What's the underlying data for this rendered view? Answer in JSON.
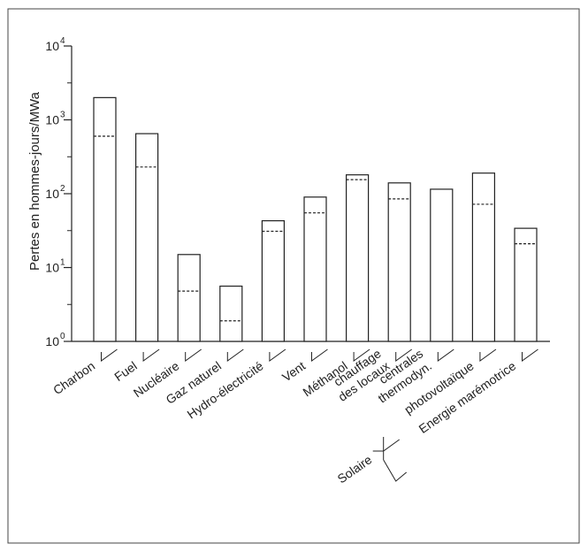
{
  "chart_data": {
    "type": "bar",
    "ylabel": "Pertes en hommes-jours/MWa",
    "yscale": "log",
    "ylim": [
      1,
      10000
    ],
    "ytick_labels": [
      {
        "value": 1,
        "base": "10",
        "exp": "0"
      },
      {
        "value": 10,
        "base": "10",
        "exp": "1"
      },
      {
        "value": 100,
        "base": "10",
        "exp": "2"
      },
      {
        "value": 1000,
        "base": "10",
        "exp": "3"
      },
      {
        "value": 10000,
        "base": "10",
        "exp": "4"
      }
    ],
    "categories": [
      "Charbon",
      "Fuel",
      "Nucléaire",
      "Gaz naturel",
      "Hydro-électricité",
      "Vent",
      "Méthanol",
      "chauffage des locaux",
      "centrales thermodyn.",
      "photovoltaïque",
      "Energie marémotrice"
    ],
    "category_lines": [
      [
        "Charbon"
      ],
      [
        "Fuel"
      ],
      [
        "Nucléaire"
      ],
      [
        "Gaz naturel"
      ],
      [
        "Hydro-électricité"
      ],
      [
        "Vent"
      ],
      [
        "Méthanol"
      ],
      [
        "chauffage",
        "des locaux"
      ],
      [
        "centrales",
        "thermodyn."
      ],
      [
        "photovoltaïque"
      ],
      [
        "Energie marémotrice"
      ]
    ],
    "series": [
      {
        "values": [
          2000,
          650,
          15,
          5.6,
          43,
          90,
          180,
          140,
          115,
          190,
          34
        ]
      },
      {
        "values": [
          600,
          230,
          4.8,
          1.9,
          31,
          55,
          155,
          85,
          null,
          72,
          21
        ]
      }
    ],
    "group_label": "Solaire",
    "group_members": [
      "chauffage des locaux",
      "centrales thermodyn.",
      "photovoltaïque"
    ],
    "grid": false,
    "legend": "none"
  }
}
